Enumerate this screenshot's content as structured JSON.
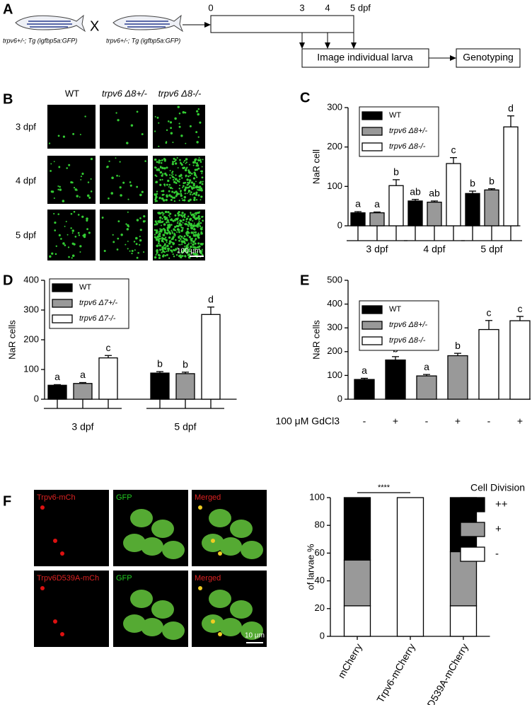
{
  "panel_labels": [
    "A",
    "B",
    "C",
    "D",
    "E",
    "F"
  ],
  "diagram": {
    "parent_1": "trpv6+/-; Tg (igfbp5a:GFP)",
    "cross": "X",
    "parent_2": "trpv6+/-; Tg (igfbp5a:GFP)",
    "timeline": [
      "0",
      "3",
      "4",
      "5 dpf"
    ],
    "step_1": "Image individual larva",
    "step_2": "Genotyping"
  },
  "micrographs_b": {
    "columns": [
      "WT",
      "trpv6 Δ8+/-",
      "trpv6 Δ8-/-"
    ],
    "rows": [
      "3 dpf",
      "4 dpf",
      "5 dpf"
    ],
    "scale_bar": "100 μm"
  },
  "micrographs_f": {
    "labels": [
      "Trpv6-mCh",
      "GFP",
      "Merged",
      "Trpv6D539A-mCh",
      "GFP",
      "Merged"
    ],
    "scale_bar": "10 μm"
  },
  "chart_data": [
    {
      "type": "bar",
      "ylabel": "NaR cell",
      "categories": [
        "3 dpf",
        "4 dpf",
        "5 dpf"
      ],
      "series": [
        {
          "name": "WT",
          "color": "#000000",
          "values": [
            33,
            63,
            82
          ],
          "errors": [
            3,
            4,
            6
          ],
          "letters": [
            "a",
            "ab",
            "b"
          ]
        },
        {
          "name": "trpv6 Δ8+/-",
          "color": "#999999",
          "values": [
            33,
            60,
            91
          ],
          "errors": [
            2,
            3,
            3
          ],
          "letters": [
            "a",
            "ab",
            "b"
          ]
        },
        {
          "name": "trpv6 Δ8-/-",
          "color": "#ffffff",
          "values": [
            102,
            158,
            251
          ],
          "errors": [
            15,
            15,
            28
          ],
          "letters": [
            "b",
            "c",
            "d"
          ]
        }
      ],
      "ylim": [
        0,
        300
      ],
      "yticks": [
        0,
        100,
        200,
        300
      ]
    },
    {
      "type": "bar",
      "ylabel": "NaR cells",
      "categories": [
        "3 dpf",
        "5 dpf"
      ],
      "series": [
        {
          "name": "WT",
          "color": "#000000",
          "values": [
            47,
            88
          ],
          "errors": [
            2,
            5
          ],
          "letters": [
            "a",
            "b"
          ]
        },
        {
          "name": "trpv6 Δ7+/-",
          "color": "#999999",
          "values": [
            53,
            86
          ],
          "errors": [
            3,
            5
          ],
          "letters": [
            "a",
            "b"
          ]
        },
        {
          "name": "trpv6 Δ7-/-",
          "color": "#ffffff",
          "values": [
            139,
            285
          ],
          "errors": [
            8,
            25
          ],
          "letters": [
            "c",
            "d"
          ]
        }
      ],
      "ylim": [
        0,
        400
      ],
      "yticks": [
        0,
        100,
        200,
        300,
        400
      ]
    },
    {
      "type": "bar",
      "ylabel": "NaR cells",
      "xlabel": "100 μM GdCl3",
      "categories": [
        "-",
        "+",
        "-",
        "+",
        "-",
        "+"
      ],
      "values": [
        83,
        165,
        98,
        183,
        293,
        330
      ],
      "errors": [
        5,
        14,
        6,
        10,
        38,
        18
      ],
      "letters": [
        "a",
        "b",
        "a",
        "b",
        "c",
        "c"
      ],
      "colors": [
        "#000000",
        "#000000",
        "#999999",
        "#999999",
        "#ffffff",
        "#ffffff"
      ],
      "legend": [
        {
          "name": "WT",
          "color": "#000000"
        },
        {
          "name": "trpv6 Δ8+/-",
          "color": "#999999"
        },
        {
          "name": "trpv6 Δ8-/-",
          "color": "#ffffff"
        }
      ],
      "ylim": [
        0,
        500
      ],
      "yticks": [
        0,
        100,
        200,
        300,
        400,
        500
      ]
    },
    {
      "type": "stacked_bar",
      "ylabel": "of larvae %",
      "legend_title": "Cell Division",
      "annotation": "****",
      "categories": [
        "mCherry",
        "Trpv6-mCherry",
        "Trpv6D539A-mCherry"
      ],
      "series": [
        {
          "name": "-",
          "color": "#ffffff",
          "values": [
            22,
            100,
            22
          ]
        },
        {
          "name": "+",
          "color": "#999999",
          "values": [
            33,
            0,
            39
          ]
        },
        {
          "name": "++",
          "color": "#000000",
          "values": [
            45,
            0,
            39
          ]
        }
      ],
      "ylim": [
        0,
        100
      ],
      "yticks": [
        0,
        20,
        40,
        60,
        80,
        100
      ]
    }
  ]
}
